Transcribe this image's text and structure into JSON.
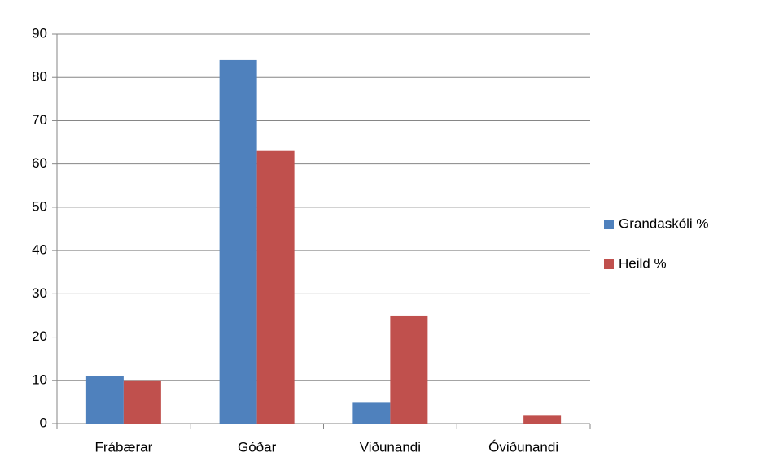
{
  "chart_data": {
    "type": "bar",
    "categories": [
      "Frábærar",
      "Góðar",
      "Viðunandi",
      "Óviðunandi"
    ],
    "series": [
      {
        "name": "Grandaskóli %",
        "color": "#4f81bd",
        "values": [
          11,
          84,
          5,
          0
        ]
      },
      {
        "name": "Heild %",
        "color": "#c0504d",
        "values": [
          10,
          63,
          25,
          2
        ]
      }
    ],
    "ylim": [
      0,
      90
    ],
    "yticks": [
      0,
      10,
      20,
      30,
      40,
      50,
      60,
      70,
      80,
      90
    ],
    "grid": true,
    "legend": "right"
  }
}
